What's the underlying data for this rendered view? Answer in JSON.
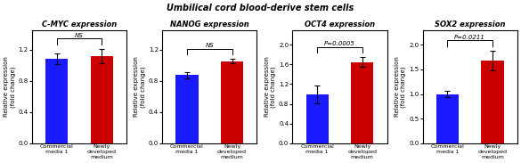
{
  "title": "Umbilical cord blood-derive stem cells",
  "chart_data": [
    {
      "type": "bar",
      "title": "C-MYC expression",
      "categories": [
        "Commercial\nmedia 1",
        "Newly\ndeveloped\nmedium"
      ],
      "values": [
        1.08,
        1.12
      ],
      "errors": [
        0.07,
        0.09
      ],
      "colors": [
        "#1a1aff",
        "#cc0000"
      ],
      "ylim": [
        0.0,
        1.45
      ],
      "yticks": [
        0.0,
        0.4,
        0.8,
        1.2
      ],
      "ylabel": "Relative expression\n(fold change)",
      "annotations": [
        "NS"
      ],
      "grid": false
    },
    {
      "type": "bar",
      "title": "NANOG expression",
      "categories": [
        "Commercial\nmedia 1",
        "Newly\ndeveloped\nmedium"
      ],
      "values": [
        0.875,
        1.05
      ],
      "errors": [
        0.04,
        0.03
      ],
      "colors": [
        "#1a1aff",
        "#cc0000"
      ],
      "ylim": [
        0.0,
        1.45
      ],
      "yticks": [
        0.0,
        0.4,
        0.8,
        1.2
      ],
      "ylabel": "Relative expression\n(fold change)",
      "annotations": [
        "NS"
      ],
      "grid": false
    },
    {
      "type": "bar",
      "title": "OCT4 expression",
      "categories": [
        "Commercial\nmedia 1",
        "Newly\ndeveloped\nmedium"
      ],
      "values": [
        1.0,
        1.65
      ],
      "errors": [
        0.18,
        0.1
      ],
      "colors": [
        "#1a1aff",
        "#cc0000"
      ],
      "ylim": [
        0.0,
        2.3
      ],
      "yticks": [
        0.0,
        0.4,
        0.8,
        1.2,
        1.6,
        2.0
      ],
      "ylabel": "Relative expression\n(fold change)",
      "annotations": [
        "P=0.0005"
      ],
      "grid": false
    },
    {
      "type": "bar",
      "title": "SOX2 expression",
      "categories": [
        "Commercial\nmedia 1",
        "Newly\ndeveloped\nmedium"
      ],
      "values": [
        1.0,
        1.68
      ],
      "errors": [
        0.06,
        0.2
      ],
      "colors": [
        "#1a1aff",
        "#cc0000"
      ],
      "ylim": [
        0.0,
        2.3
      ],
      "yticks": [
        0.0,
        0.5,
        1.0,
        1.5,
        2.0
      ],
      "ylabel": "Relative expression\n(fold change)",
      "annotations": [
        "P=0.0211"
      ],
      "grid": false
    }
  ]
}
